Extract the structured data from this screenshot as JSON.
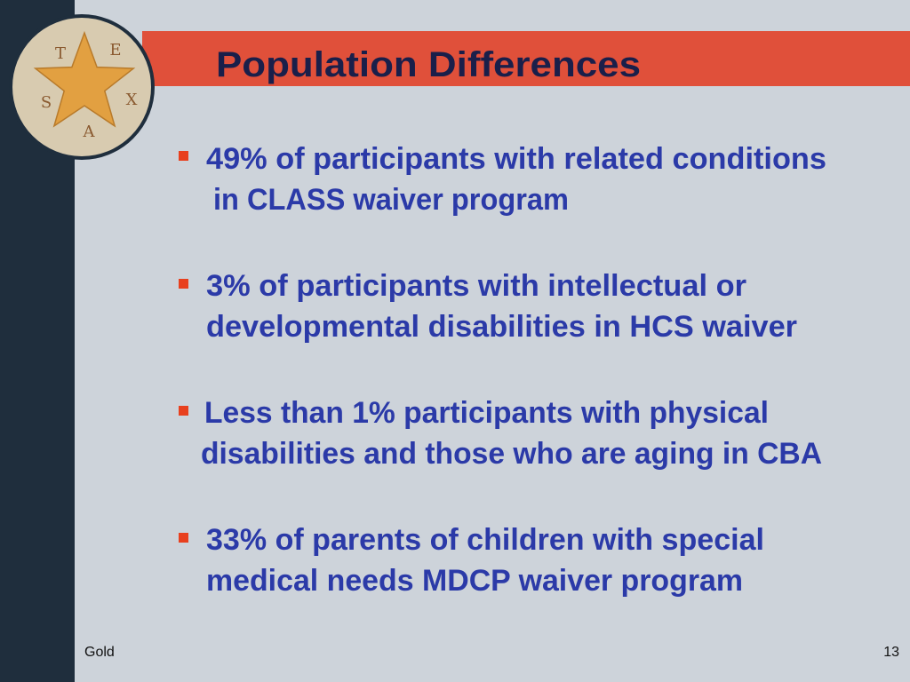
{
  "header": {
    "title": "Population Differences"
  },
  "logo": {
    "letters": [
      "T",
      "E",
      "X",
      "A",
      "S"
    ]
  },
  "bullets": [
    {
      "lines": [
        "49% of participants with related conditions",
        "in CLASS waiver program"
      ]
    },
    {
      "lines": [
        "3% of participants with intellectual or",
        "developmental disabilities in HCS waiver"
      ]
    },
    {
      "lines": [
        "Less than 1% participants with physical",
        "disabilities and those who are aging in CBA"
      ]
    },
    {
      "lines": [
        "33% of parents of children with special",
        "medical needs MDCP waiver program"
      ]
    }
  ],
  "footer": {
    "left": "Gold",
    "page": 13
  }
}
